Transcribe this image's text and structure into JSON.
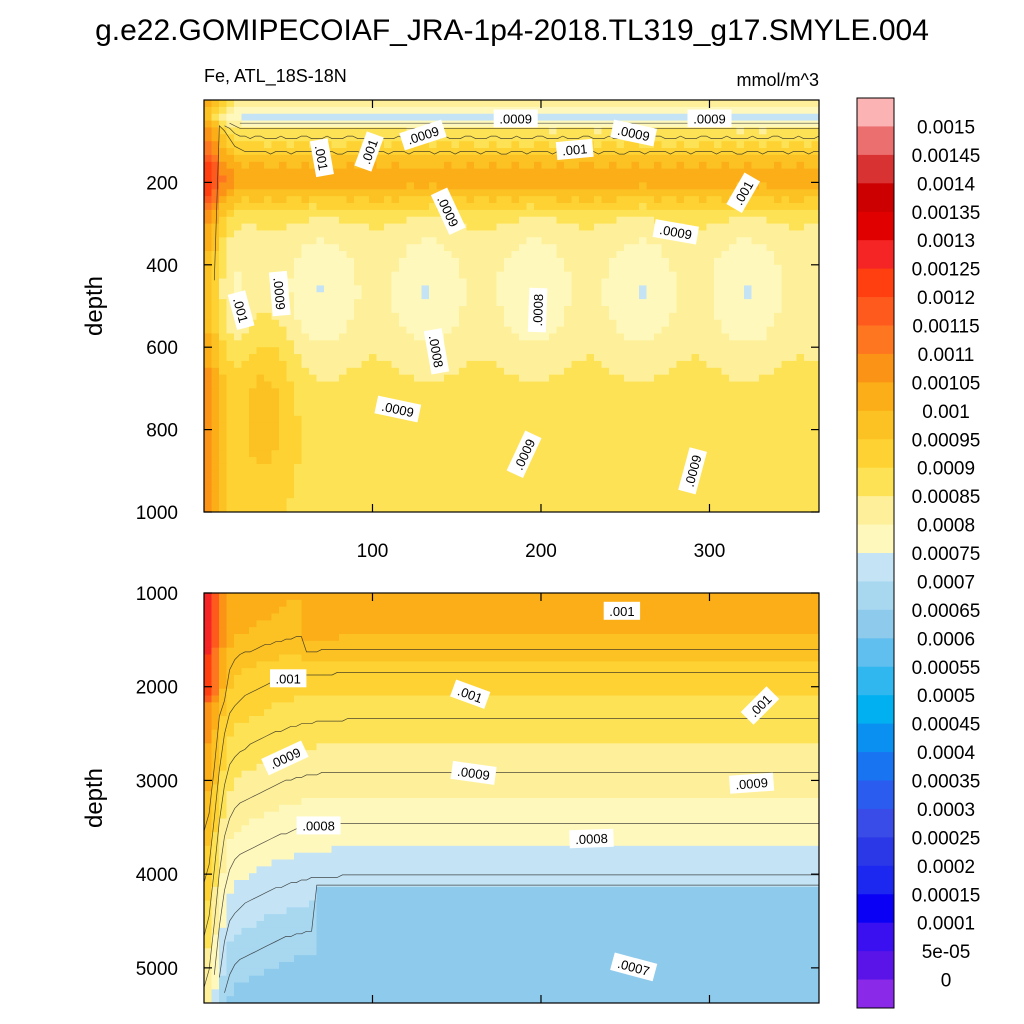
{
  "title": "g.e22.GOMIPECOIAF_JRA-1p4-2018.TL319_g17.SMYLE.004",
  "chart_data": [
    {
      "type": "contour",
      "panel": "upper",
      "variable_label": "Fe, ATL_18S-18N",
      "units": "mmol/m^3",
      "ylabel": "depth",
      "xlabel": "",
      "xlim": [
        0,
        365
      ],
      "ylim": [
        1000,
        0
      ],
      "xticks": [
        100,
        200,
        300
      ],
      "yticks": [
        200,
        400,
        600,
        800,
        1000
      ],
      "contour_labels": [
        {
          "text": ".0009",
          "x": 185,
          "y": 45,
          "angle": 0
        },
        {
          "text": ".0009",
          "x": 130,
          "y": 85,
          "angle": -18
        },
        {
          "text": ".0009",
          "x": 255,
          "y": 80,
          "angle": 12
        },
        {
          "text": ".0009",
          "x": 300,
          "y": 45,
          "angle": 0
        },
        {
          "text": ".001",
          "x": 70,
          "y": 140,
          "angle": 80
        },
        {
          "text": ".001",
          "x": 98,
          "y": 125,
          "angle": -70
        },
        {
          "text": ".001",
          "x": 220,
          "y": 120,
          "angle": -5
        },
        {
          "text": ".001",
          "x": 320,
          "y": 225,
          "angle": -60
        },
        {
          "text": ".0009",
          "x": 145,
          "y": 270,
          "angle": 65
        },
        {
          "text": ".0009",
          "x": 280,
          "y": 320,
          "angle": 10
        },
        {
          "text": ".0009",
          "x": 45,
          "y": 470,
          "angle": 85
        },
        {
          "text": ".001",
          "x": 22,
          "y": 510,
          "angle": 75
        },
        {
          "text": ".0008",
          "x": 198,
          "y": 510,
          "angle": -88
        },
        {
          "text": ".0008",
          "x": 138,
          "y": 610,
          "angle": 80
        },
        {
          "text": ".0009",
          "x": 115,
          "y": 750,
          "angle": 12
        },
        {
          "text": ".0009",
          "x": 190,
          "y": 860,
          "angle": -65
        },
        {
          "text": ".0009",
          "x": 290,
          "y": 900,
          "angle": -75
        }
      ]
    },
    {
      "type": "contour",
      "panel": "lower",
      "ylabel": "depth",
      "xlabel": "",
      "xlim": [
        0,
        365
      ],
      "ylim": [
        5375,
        1000
      ],
      "yticks": [
        1000,
        2000,
        3000,
        4000,
        5000
      ],
      "contour_labels": [
        {
          "text": ".001",
          "x": 248,
          "y": 1190,
          "angle": 0
        },
        {
          "text": ".001",
          "x": 50,
          "y": 1910,
          "angle": 0
        },
        {
          "text": ".001",
          "x": 158,
          "y": 2080,
          "angle": 20
        },
        {
          "text": ".001",
          "x": 330,
          "y": 2200,
          "angle": -45
        },
        {
          "text": ".0009",
          "x": 48,
          "y": 2760,
          "angle": -25
        },
        {
          "text": ".0009",
          "x": 160,
          "y": 2920,
          "angle": 8
        },
        {
          "text": ".0009",
          "x": 325,
          "y": 3030,
          "angle": -4
        },
        {
          "text": ".0008",
          "x": 68,
          "y": 3480,
          "angle": 0
        },
        {
          "text": ".0008",
          "x": 230,
          "y": 3620,
          "angle": -2
        },
        {
          "text": ".0007",
          "x": 255,
          "y": 4990,
          "angle": 15
        }
      ]
    }
  ],
  "colorbar": {
    "labels": [
      "0.0015",
      "0.00145",
      "0.0014",
      "0.00135",
      "0.0013",
      "0.00125",
      "0.0012",
      "0.00115",
      "0.0011",
      "0.00105",
      "0.001",
      "0.00095",
      "0.0009",
      "0.00085",
      "0.0008",
      "0.00075",
      "0.0007",
      "0.00065",
      "0.0006",
      "0.00055",
      "0.0005",
      "0.00045",
      "0.0004",
      "0.00035",
      "0.0003",
      "0.00025",
      "0.0002",
      "0.00015",
      "0.0001",
      "5e-05",
      "0"
    ],
    "colors": [
      "#fbb3b3",
      "#ec6f6f",
      "#d83232",
      "#cc0000",
      "#e00000",
      "#f52525",
      "#ff3f0f",
      "#ff5a1e",
      "#ff7621",
      "#fb9316",
      "#fbae17",
      "#fcc123",
      "#fdd232",
      "#fde255",
      "#fef09a",
      "#fff8bd",
      "#c4e4f5",
      "#a8d7f0",
      "#8ecaec",
      "#61bff0",
      "#31b7f0",
      "#00b0f0",
      "#0a90f0",
      "#1874f0",
      "#2a5cf0",
      "#3a4ce8",
      "#2a38e8",
      "#1c28f0",
      "#0a00f5",
      "#3a10f0",
      "#5a14e8",
      "#8a2ae8"
    ]
  }
}
